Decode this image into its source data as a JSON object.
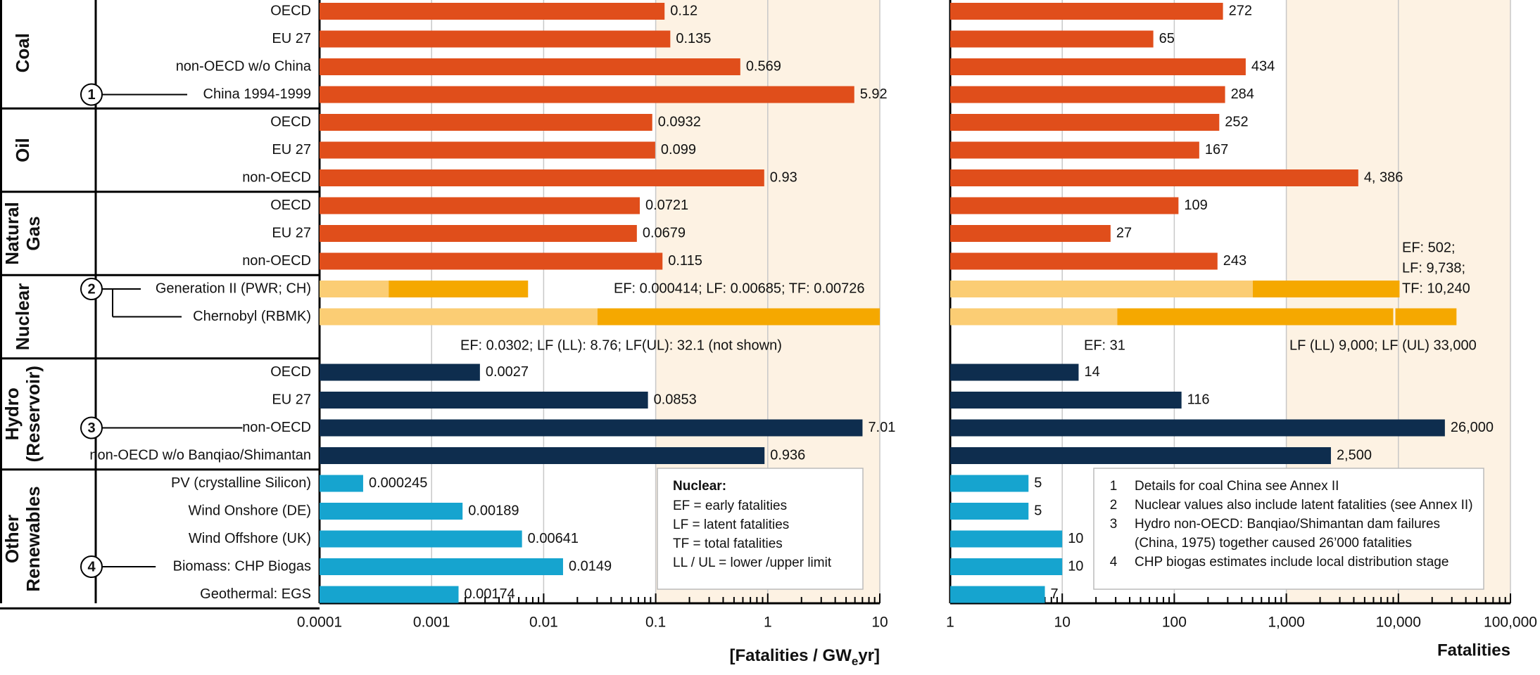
{
  "chart_data": {
    "type": "bar",
    "left_panel": {
      "scale": "log",
      "xlim": [
        0.0001,
        10
      ],
      "ticks": [
        "0.0001",
        "0.001",
        "0.01",
        "0.1",
        "1",
        "10"
      ],
      "xlabel": "[Fatalities / GW",
      "xlabel_sub": "e",
      "xlabel_end": "yr]"
    },
    "right_panel": {
      "scale": "log",
      "xlim": [
        1,
        100000
      ],
      "ticks": [
        "1",
        "10",
        "100",
        "1,000",
        "10,000",
        "100,000"
      ],
      "xlabel": "Fatalities"
    },
    "groups": [
      {
        "lines": [
          "Coal"
        ],
        "rows": [
          0,
          1,
          2,
          3
        ]
      },
      {
        "lines": [
          "Oil"
        ],
        "rows": [
          4,
          5,
          6
        ]
      },
      {
        "lines": [
          "Natural",
          "Gas"
        ],
        "rows": [
          7,
          8,
          9
        ]
      },
      {
        "lines": [
          "Nuclear"
        ],
        "rows": [
          10,
          11,
          12
        ]
      },
      {
        "lines": [
          "Hydro",
          "(Reservoir)"
        ],
        "rows": [
          13,
          14,
          15,
          16
        ]
      },
      {
        "lines": [
          "Other",
          "Renewables"
        ],
        "rows": [
          17,
          18,
          19,
          20,
          21
        ]
      }
    ],
    "rows": [
      {
        "label": "OECD",
        "kind": "fossil",
        "left": 0.12,
        "left_label": "0.12",
        "right": 272,
        "right_label": "272"
      },
      {
        "label": "EU 27",
        "kind": "fossil",
        "left": 0.135,
        "left_label": "0.135",
        "right": 65,
        "right_label": "65"
      },
      {
        "label": "non-OECD w/o China",
        "kind": "fossil",
        "left": 0.569,
        "left_label": "0.569",
        "right": 434,
        "right_label": "434"
      },
      {
        "label": "China 1994-1999",
        "kind": "fossil",
        "marker": "1",
        "left": 5.92,
        "left_label": "5.92",
        "right": 284,
        "right_label": "284"
      },
      {
        "label": "OECD",
        "kind": "fossil",
        "left": 0.0932,
        "left_label": "0.0932",
        "right": 252,
        "right_label": "252"
      },
      {
        "label": "EU 27",
        "kind": "fossil",
        "left": 0.099,
        "left_label": "0.099",
        "right": 167,
        "right_label": "167"
      },
      {
        "label": "non-OECD",
        "kind": "fossil",
        "left": 0.93,
        "left_label": "0.93",
        "right": 4386,
        "right_label": "4, 386"
      },
      {
        "label": "OECD",
        "kind": "fossil",
        "left": 0.0721,
        "left_label": "0.0721",
        "right": 109,
        "right_label": "109"
      },
      {
        "label": "EU 27",
        "kind": "fossil",
        "left": 0.0679,
        "left_label": "0.0679",
        "right": 27,
        "right_label": "27"
      },
      {
        "label": "non-OECD",
        "kind": "fossil",
        "left": 0.115,
        "left_label": "0.115",
        "right": 243,
        "right_label": "243"
      },
      {
        "label": "Generation II (PWR; CH)",
        "kind": "nuclear",
        "marker": "2",
        "left_ef": 0.000414,
        "left_tf": 0.00726,
        "left_note": "EF: 0.000414; LF: 0.00685; TF: 0.00726",
        "right_ef": 502,
        "right_tf": 10240,
        "right_note_lines": [
          "EF: 502;",
          "LF: 9,738;",
          "TF: 10,240"
        ]
      },
      {
        "label": "Chernobyl (RBMK)",
        "kind": "nuclear",
        "left_ef": 0.0302,
        "left_tf": 8.76,
        "left_ul": 10,
        "right_ef": 31,
        "right_ll": 9000,
        "right_ul": 33000
      },
      {
        "label": "",
        "kind": "note",
        "left_note": "EF: 0.0302; LF (LL): 8.76; LF(UL): 32.1 (not shown)",
        "right_note_a": "EF: 31",
        "right_note_b": "LF (LL) 9,000; LF (UL) 33,000"
      },
      {
        "label": "OECD",
        "kind": "hydro",
        "left": 0.0027,
        "left_label": "0.0027",
        "right": 14,
        "right_label": "14"
      },
      {
        "label": "EU 27",
        "kind": "hydro",
        "left": 0.0853,
        "left_label": "0.0853",
        "right": 116,
        "right_label": "116"
      },
      {
        "label": "non-OECD",
        "kind": "hydro",
        "marker": "3",
        "left": 7.01,
        "left_label": "7.01",
        "right": 26000,
        "right_label": "26,000"
      },
      {
        "label": "non-OECD w/o Banqiao/Shimantan",
        "kind": "hydro",
        "left": 0.936,
        "left_label": "0.936",
        "right": 2500,
        "right_label": "2,500"
      },
      {
        "label": "PV (crystalline Silicon)",
        "kind": "renew",
        "left": 0.000245,
        "left_label": "0.000245",
        "right": 5,
        "right_label": "5"
      },
      {
        "label": "Wind Onshore (DE)",
        "kind": "renew",
        "left": 0.00189,
        "left_label": "0.00189",
        "right": 5,
        "right_label": "5"
      },
      {
        "label": "Wind Offshore (UK)",
        "kind": "renew",
        "left": 0.00641,
        "left_label": "0.00641",
        "right": 10,
        "right_label": "10"
      },
      {
        "label": "Biomass: CHP Biogas",
        "kind": "renew",
        "marker": "4",
        "left": 0.0149,
        "left_label": "0.0149",
        "right": 10,
        "right_label": "10"
      },
      {
        "label": "Geothermal: EGS",
        "kind": "renew",
        "left": 0.00174,
        "left_label": "0.00174",
        "right": 7,
        "right_label": "7"
      }
    ],
    "legend_box": {
      "title": "Nuclear:",
      "lines": [
        "EF = early fatalities",
        "LF = latent fatalities",
        "TF = total fatalities",
        "LL / UL = lower /upper limit"
      ]
    },
    "notes_box": [
      {
        "num": "1",
        "text": "Details for coal China see Annex II"
      },
      {
        "num": "2",
        "text": "Nuclear values also include latent fatalities (see Annex II)"
      },
      {
        "num": "3",
        "text": "Hydro non-OECD: Banqiao/Shimantan dam failures"
      },
      {
        "num": "",
        "text": "(China, 1975) together caused 26’000 fatalities"
      },
      {
        "num": "4",
        "text": "CHP biogas estimates include local distribution stage"
      }
    ],
    "colors": {
      "fossil": "#e04e1b",
      "nuclear_light": "#fbcd74",
      "nuclear_dark": "#f5a800",
      "hydro": "#0e2d4e",
      "renew": "#16a4cf",
      "shade": "#fdf2e3",
      "grid": "#c8c8c8"
    }
  }
}
